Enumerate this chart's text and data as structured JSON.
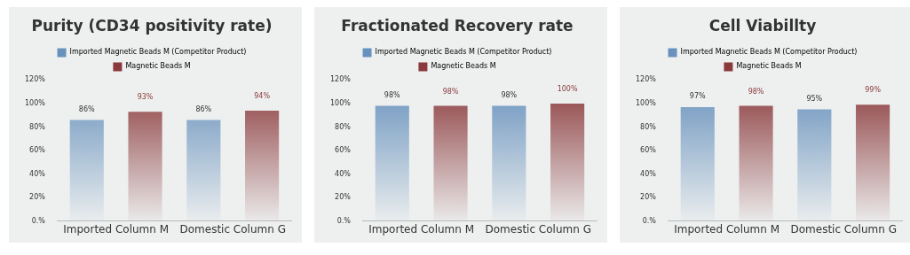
{
  "chart_data": [
    {
      "type": "bar",
      "title": "Purity (CD34 positivity rate)",
      "categories": [
        "Imported Column M",
        "Domestic Column G"
      ],
      "series": [
        {
          "name": "Imported Magnetic Beads M (Competitor Product)",
          "color": "#6892bd",
          "values": [
            86,
            86
          ],
          "value_labels": [
            "86%",
            "86%"
          ]
        },
        {
          "name": "Magnetic Beads M",
          "color": "#8b3a3c",
          "values": [
            93,
            94
          ],
          "value_labels": [
            "93%",
            "94%"
          ]
        }
      ],
      "ylim": [
        0,
        120
      ],
      "yticks": [
        {
          "value": 0,
          "label": "0.%"
        },
        {
          "value": 20,
          "label": "20%"
        },
        {
          "value": 40,
          "label": "40%"
        },
        {
          "value": 60,
          "label": "60%"
        },
        {
          "value": 80,
          "label": "80%"
        },
        {
          "value": 100,
          "label": "100%"
        },
        {
          "value": 120,
          "label": "120%"
        }
      ],
      "grid": false,
      "legend": "top"
    },
    {
      "type": "bar",
      "title": "Fractionated Recovery rate",
      "categories": [
        "Imported Column M",
        "Domestic Column G"
      ],
      "series": [
        {
          "name": "Imported Magnetic Beads M (Competitor Product)",
          "color": "#6892bd",
          "values": [
            98,
            98
          ],
          "value_labels": [
            "98%",
            "98%"
          ]
        },
        {
          "name": "Magnetic Beads M",
          "color": "#8b3a3c",
          "values": [
            98,
            100
          ],
          "value_labels": [
            "98%",
            "100%"
          ]
        }
      ],
      "ylim": [
        0,
        120
      ],
      "yticks": [
        {
          "value": 0,
          "label": "0.%"
        },
        {
          "value": 20,
          "label": "20%"
        },
        {
          "value": 40,
          "label": "40%"
        },
        {
          "value": 60,
          "label": "60%"
        },
        {
          "value": 80,
          "label": "80%"
        },
        {
          "value": 100,
          "label": "100%"
        },
        {
          "value": 120,
          "label": "120%"
        }
      ],
      "grid": false,
      "legend": "top"
    },
    {
      "type": "bar",
      "title": "Cell Viabillty",
      "categories": [
        "Imported Column M",
        "Domestic Column G"
      ],
      "series": [
        {
          "name": "Imported Magnetic Beads M (Competitor Product)",
          "color": "#6892bd",
          "values": [
            97,
            95
          ],
          "value_labels": [
            "97%",
            "95%"
          ]
        },
        {
          "name": "Magnetic Beads M",
          "color": "#8b3a3c",
          "values": [
            98,
            99
          ],
          "value_labels": [
            "98%",
            "99%"
          ]
        }
      ],
      "ylim": [
        0,
        120
      ],
      "yticks": [
        {
          "value": 0,
          "label": "0.%"
        },
        {
          "value": 20,
          "label": "20%"
        },
        {
          "value": 40,
          "label": "40%"
        },
        {
          "value": 60,
          "label": "60%"
        },
        {
          "value": 80,
          "label": "80%"
        },
        {
          "value": 100,
          "label": "100%"
        },
        {
          "value": 120,
          "label": "120%"
        }
      ],
      "grid": false,
      "legend": "top"
    }
  ]
}
